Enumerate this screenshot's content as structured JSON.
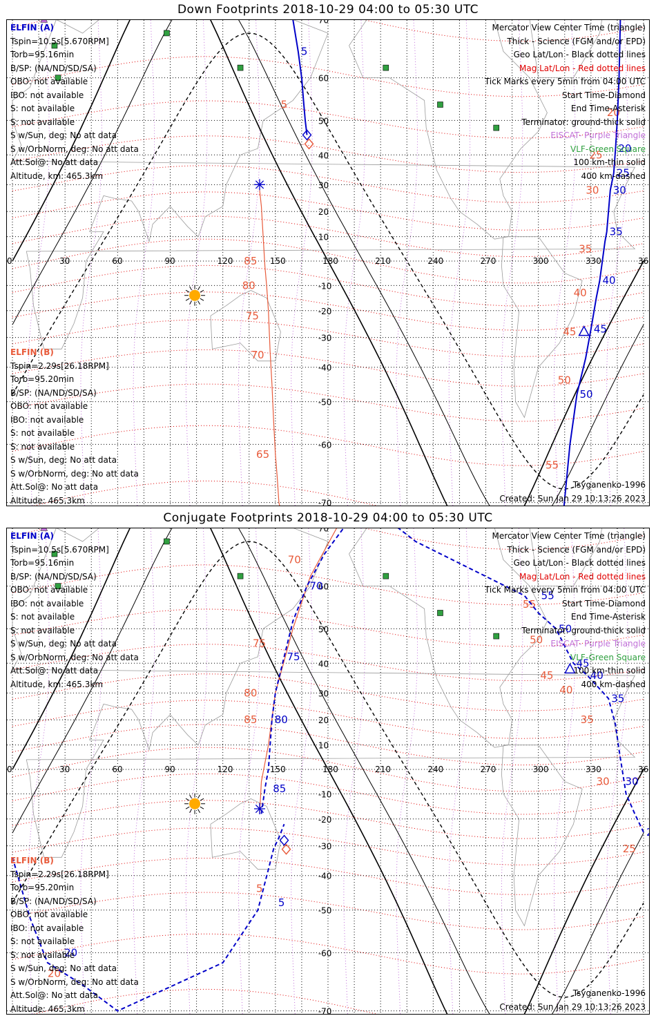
{
  "panels": [
    {
      "title": "Down Footprints 2018-10-29 04:00 to 05:30 UTC",
      "left_info_a": [
        "ELFIN (A)",
        "Tspin=10.5s[5.670RPM]",
        "Torb=95.16min",
        "B/SP: (NA/ND/SD/SA)",
        "OBO: not available",
        "IBO: not available",
        "S: not available",
        "S: not available",
        "S w/Sun, deg: No att data",
        "S w/OrbNorm, deg: No att data",
        "Att.Sol@: No att data",
        "Altitude, km: 465.3km"
      ],
      "left_info_b": [
        "ELFIN (B)",
        "Tspin=2.29s[26.18RPM]",
        "Torb=95.20min",
        "B/SP: (NA/ND/SD/SA)",
        "OBO: not available",
        "IBO: not available",
        "S: not available",
        "S: not available",
        "S w/Sun, deg: No att data",
        "S w/OrbNorm, deg: No att data",
        "Att.Sol@: No att data",
        "Altitude: 465.3km"
      ],
      "right_legend": [
        "Mercator View Center Time (triangle)",
        "Thick - Science (FGM and/or EPD)",
        "Geo Lat/Lon - Black dotted lines",
        "Mag Lat/Lon - Red dotted lines",
        "Tick Marks every 5min from 04:00 UTC",
        "Start Time-Diamond",
        "End Time-Asterisk",
        "Terminator: ground-thick solid",
        "EISCAT- Purple Triangle",
        "VLF-Green Square",
        "100 km-thin solid",
        "400 km-dashed"
      ],
      "footer_model": "Tsyganenko-1996",
      "footer_created": "Created: Sun Jan 29 10:13:26 2023"
    },
    {
      "title": "Conjugate Footprints 2018-10-29 04:00 to 05:30 UTC",
      "left_info_a": [
        "ELFIN (A)",
        "Tspin=10.5s[5.670RPM]",
        "Torb=95.16min",
        "B/SP: (NA/ND/SD/SA)",
        "OBO: not available",
        "IBO: not available",
        "S: not available",
        "S: not available",
        "S w/Sun, deg: No att data",
        "S w/OrbNorm, deg: No att data",
        "Att.Sol@: No att data",
        "Altitude, km: 465.3km"
      ],
      "left_info_b": [
        "ELFIN (B)",
        "Tspin=2.29s[26.18RPM]",
        "Torb=95.20min",
        "B/SP: (NA/ND/SD/SA)",
        "OBO: not available",
        "IBO: not available",
        "S: not available",
        "S: not available",
        "S w/Sun, deg: No att data",
        "S w/OrbNorm, deg: No att data",
        "Att.Sol@: No att data",
        "Altitude: 465.3km"
      ],
      "right_legend": [
        "Mercator View Center Time (triangle)",
        "Thick - Science (FGM and/or EPD)",
        "Geo Lat/Lon - Black dotted lines",
        "Mag Lat/Lon - Red dotted lines",
        "Tick Marks every 5min from 04:00 UTC",
        "Start Time-Diamond",
        "End Time-Asterisk",
        "Terminator: ground-thick solid",
        "EISCAT- Purple Triangle",
        "VLF-Green Square",
        "100 km-thin solid",
        "400 km-dashed"
      ],
      "footer_model": "Tsyganenko-1996",
      "footer_created": "Created: Sun Jan 29 10:13:26 2023"
    }
  ],
  "colors": {
    "elfin_a": "#0000c8",
    "elfin_b": "#e85a3a",
    "geo_grid": "#000000",
    "mag_grid": "#e00000",
    "vlf": "#30a040",
    "eiscat": "#c070d8",
    "sun": "#ffaa00"
  },
  "chart_data": [
    {
      "type": "scatter",
      "projection": "mercator",
      "lon_ticks": [
        "0",
        "30",
        "60",
        "90",
        "120",
        "150",
        "180",
        "210",
        "240",
        "270",
        "300",
        "330",
        "360"
      ],
      "lat_ticks": [
        "70",
        "60",
        "50",
        "40",
        "30",
        "20",
        "10",
        "-10",
        "-20",
        "-30",
        "-40",
        "-50",
        "-60",
        "-70"
      ],
      "xlim": [
        0,
        360
      ],
      "ylim": [
        -79,
        80
      ],
      "vlf_stations": [
        [
          24,
          66
        ],
        [
          26,
          60
        ],
        [
          88,
          68
        ],
        [
          130,
          62
        ],
        [
          213,
          62
        ],
        [
          244,
          54
        ],
        [
          276,
          48
        ]
      ],
      "sun": [
        104,
        -14
      ],
      "elfin_a": {
        "points": [
          [
            155,
            78
          ],
          [
            160,
            70
          ],
          [
            163,
            65
          ],
          [
            165,
            60
          ],
          [
            166,
            55
          ],
          [
            167,
            50
          ],
          [
            168,
            46
          ]
        ],
        "tick_labels": [
          {
            "label": "5",
            "lon": 163,
            "lat": 65
          }
        ],
        "start": [
          168,
          46
        ]
      },
      "elfin_a_second": {
        "points": [
          [
            348,
            80
          ],
          [
            346,
            60
          ],
          [
            345,
            50
          ],
          [
            344,
            42
          ],
          [
            343,
            34
          ],
          [
            341,
            28
          ],
          [
            339,
            12
          ],
          [
            338,
            8
          ],
          [
            335,
            -8
          ],
          [
            333,
            -15
          ],
          [
            330,
            -27
          ],
          [
            327,
            -37
          ],
          [
            322,
            -48
          ],
          [
            318,
            -60
          ],
          [
            314,
            -72
          ]
        ],
        "tick_labels": [
          {
            "label": "20",
            "lon": 344,
            "lat": 42
          },
          {
            "label": "25",
            "lon": 343,
            "lat": 34
          },
          {
            "label": "30",
            "lon": 341,
            "lat": 28
          },
          {
            "label": "35",
            "lon": 339,
            "lat": 12
          },
          {
            "label": "40",
            "lon": 335,
            "lat": -8
          },
          {
            "label": "45",
            "lon": 330,
            "lat": -27
          },
          {
            "label": "50",
            "lon": 322,
            "lat": -48
          },
          {
            "label": "55",
            "lon": 314,
            "lat": -72
          }
        ],
        "center_triangle": [
          326,
          -28
        ]
      },
      "elfin_b": {
        "points": [
          [
            141,
            28
          ],
          [
            142,
            22
          ],
          [
            143,
            10
          ],
          [
            144,
            -2
          ],
          [
            145,
            -10
          ],
          [
            146,
            -20
          ],
          [
            147,
            -35
          ],
          [
            148,
            -45
          ],
          [
            149,
            -55
          ],
          [
            150,
            -62
          ],
          [
            151,
            -66
          ],
          [
            152,
            -70
          ],
          [
            154,
            -72
          ]
        ],
        "tick_labels": [
          {
            "label": "85",
            "lon": 142,
            "lat": 22
          },
          {
            "label": "80",
            "lon": 146,
            "lat": -10
          },
          {
            "label": "75",
            "lon": 147,
            "lat": -20
          },
          {
            "label": "70",
            "lon": 148,
            "lat": -35
          },
          {
            "label": "65",
            "lon": 151,
            "lat": -55
          }
        ],
        "end": [
          141,
          30
        ]
      },
      "elfin_b_labels": [
        {
          "label": "5",
          "lon": 157,
          "lat": 54
        },
        {
          "label": "85",
          "lon": 136,
          "lat": 0
        },
        {
          "label": "80",
          "lon": 135,
          "lat": -10
        },
        {
          "label": "75",
          "lon": 137,
          "lat": -22
        },
        {
          "label": "70",
          "lon": 140,
          "lat": -36
        },
        {
          "label": "65",
          "lon": 143,
          "lat": -62
        },
        {
          "label": "20",
          "lon": 343,
          "lat": 52
        },
        {
          "label": "25",
          "lon": 333,
          "lat": 40
        },
        {
          "label": "30",
          "lon": 331,
          "lat": 28
        },
        {
          "label": "35",
          "lon": 327,
          "lat": 5
        },
        {
          "label": "40",
          "lon": 324,
          "lat": -13
        },
        {
          "label": "45",
          "lon": 318,
          "lat": -28
        },
        {
          "label": "50",
          "lon": 315,
          "lat": -44
        },
        {
          "label": "55",
          "lon": 308,
          "lat": -64
        }
      ]
    },
    {
      "type": "scatter",
      "projection": "mercator",
      "lon_ticks": [
        "0",
        "30",
        "60",
        "90",
        "120",
        "150",
        "180",
        "210",
        "240",
        "270",
        "300",
        "330",
        "360"
      ],
      "lat_ticks": [
        "70",
        "60",
        "50",
        "40",
        "30",
        "20",
        "10",
        "-10",
        "-20",
        "-30",
        "-40",
        "-50",
        "-60",
        "-70"
      ],
      "xlim": [
        0,
        360
      ],
      "ylim": [
        -79,
        80
      ],
      "vlf_stations": [
        [
          24,
          66
        ],
        [
          26,
          60
        ],
        [
          88,
          68
        ],
        [
          130,
          62
        ],
        [
          213,
          62
        ],
        [
          244,
          54
        ],
        [
          276,
          48
        ]
      ],
      "sun": [
        104,
        -14
      ],
      "elfin_a": {
        "points": [
          [
            0,
            -34
          ],
          [
            10,
            -52
          ],
          [
            20,
            -62
          ],
          [
            40,
            -66
          ],
          [
            60,
            -70
          ],
          [
            120,
            -62
          ],
          [
            140,
            -50
          ],
          [
            146,
            -38
          ],
          [
            149,
            -31
          ],
          [
            152,
            -27
          ],
          [
            155,
            -22
          ]
        ],
        "tick_labels": [
          {
            "label": "20",
            "lon": 28,
            "lat": -60
          },
          {
            "label": "5",
            "lon": 150,
            "lat": -48
          }
        ],
        "start": [
          155,
          -28
        ]
      },
      "elfin_a_second": {
        "points": [
          [
            142,
            -18
          ],
          [
            144,
            -8
          ],
          [
            146,
            0
          ],
          [
            147,
            10
          ],
          [
            148,
            20
          ],
          [
            150,
            30
          ],
          [
            155,
            42
          ],
          [
            160,
            52
          ],
          [
            168,
            60
          ],
          [
            178,
            66
          ],
          [
            192,
            71
          ],
          [
            210,
            72
          ],
          [
            220,
            70
          ],
          [
            230,
            68
          ],
          [
            292,
            58
          ],
          [
            300,
            54
          ],
          [
            310,
            50
          ],
          [
            320,
            40
          ],
          [
            328,
            36
          ],
          [
            340,
            28
          ],
          [
            344,
            18
          ],
          [
            346,
            8
          ],
          [
            350,
            -10
          ],
          [
            355,
            -18
          ],
          [
            360,
            -25
          ]
        ],
        "tick_labels": [
          {
            "label": "85",
            "lon": 147,
            "lat": -8
          },
          {
            "label": "80",
            "lon": 148,
            "lat": 20
          },
          {
            "label": "75",
            "lon": 155,
            "lat": 42
          },
          {
            "label": "70",
            "lon": 168,
            "lat": 60
          },
          {
            "label": "55",
            "lon": 300,
            "lat": 58
          },
          {
            "label": "50",
            "lon": 310,
            "lat": 50
          },
          {
            "label": "45",
            "lon": 320,
            "lat": 40
          },
          {
            "label": "40",
            "lon": 328,
            "lat": 36
          },
          {
            "label": "35",
            "lon": 340,
            "lat": 28
          },
          {
            "label": "30",
            "lon": 348,
            "lat": -5
          },
          {
            "label": "25",
            "lon": 360,
            "lat": -25
          }
        ],
        "center_triangle": [
          318,
          38
        ]
      },
      "elfin_b": {
        "points": [
          [
            141,
            -18
          ],
          [
            142,
            -5
          ],
          [
            146,
            10
          ],
          [
            150,
            30
          ],
          [
            160,
            50
          ],
          [
            170,
            62
          ],
          [
            185,
            70
          ],
          [
            210,
            72
          ]
        ],
        "tick_labels": [],
        "end": [
          141,
          -16
        ]
      },
      "elfin_b_labels": [
        {
          "label": "20",
          "lon": 24,
          "lat": -64
        },
        {
          "label": "5",
          "lon": 143,
          "lat": -44
        },
        {
          "label": "85",
          "lon": 136,
          "lat": 20
        },
        {
          "label": "80",
          "lon": 136,
          "lat": 30
        },
        {
          "label": "75",
          "lon": 141,
          "lat": 46
        },
        {
          "label": "70",
          "lon": 161,
          "lat": 65
        },
        {
          "label": "55",
          "lon": 295,
          "lat": 56
        },
        {
          "label": "50",
          "lon": 299,
          "lat": 47
        },
        {
          "label": "45",
          "lon": 305,
          "lat": 36
        },
        {
          "label": "40",
          "lon": 316,
          "lat": 31
        },
        {
          "label": "35",
          "lon": 328,
          "lat": 20
        },
        {
          "label": "30",
          "lon": 337,
          "lat": -5
        },
        {
          "label": "25",
          "lon": 352,
          "lat": -31
        }
      ]
    }
  ]
}
